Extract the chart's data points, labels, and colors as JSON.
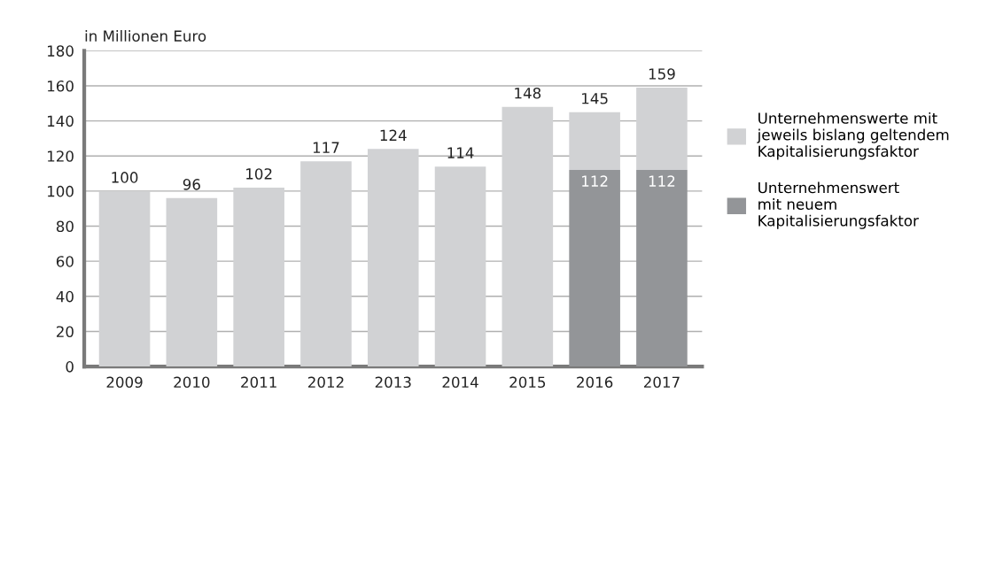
{
  "chart_data": {
    "type": "bar",
    "stacked": true,
    "ylabel": "in Millionen Euro",
    "categories": [
      "2009",
      "2010",
      "2011",
      "2012",
      "2013",
      "2014",
      "2015",
      "2016",
      "2017"
    ],
    "series": [
      {
        "name": "Unternehmenswert\nmit neuem\nKapitalisierungsfaktor",
        "color": "#939598",
        "values": [
          null,
          null,
          null,
          null,
          null,
          null,
          null,
          112,
          112
        ],
        "value_labels": [
          null,
          null,
          null,
          null,
          null,
          null,
          null,
          "112",
          "112"
        ]
      },
      {
        "name": "Unternehmenswerte mit\njeweils bislang geltendem\nKapitalisierungsfaktor",
        "color": "#d1d2d4",
        "values": [
          100,
          96,
          102,
          117,
          124,
          114,
          148,
          33,
          47
        ]
      }
    ],
    "totals": [
      "100",
      "96",
      "102",
      "117",
      "124",
      "114",
      "148",
      "145",
      "159"
    ],
    "ylim": [
      0,
      180
    ],
    "yticks": [
      0,
      20,
      40,
      60,
      80,
      100,
      120,
      140,
      160,
      180
    ],
    "grid": "y",
    "legend": "right"
  }
}
